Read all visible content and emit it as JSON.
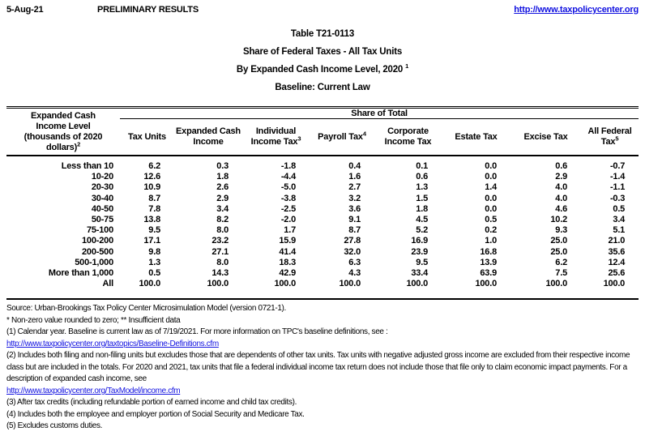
{
  "topbar": {
    "date": "5-Aug-21",
    "banner": "PRELIMINARY RESULTS",
    "site_url": "http://www.taxpolicycenter.org"
  },
  "title_lines": [
    {
      "text": "Table T21-0113"
    },
    {
      "text": "Share of Federal Taxes - All Tax Units"
    },
    {
      "text": "By Expanded Cash Income Level, 2020 ",
      "sup": "1"
    },
    {
      "text": "Baseline: Current Law"
    }
  ],
  "table": {
    "row_header": {
      "lines": [
        "Expanded Cash",
        "Income Level",
        "(thousands of 2020",
        "dollars)"
      ],
      "sup": "2"
    },
    "span_header": "Share of Total",
    "columns": [
      {
        "lines": [
          "Tax Units"
        ]
      },
      {
        "lines": [
          "Expanded Cash",
          "Income"
        ]
      },
      {
        "lines": [
          "Individual",
          "Income Tax"
        ],
        "sup": "3"
      },
      {
        "lines": [
          "Payroll Tax"
        ],
        "sup": "4"
      },
      {
        "lines": [
          "Corporate",
          "Income Tax"
        ]
      },
      {
        "lines": [
          "Estate Tax"
        ]
      },
      {
        "lines": [
          "Excise Tax"
        ]
      },
      {
        "lines": [
          "All Federal",
          "Tax"
        ],
        "sup": "5"
      }
    ],
    "rows": [
      {
        "label": "Less than 10",
        "values": [
          "6.2",
          "0.3",
          "-1.8",
          "0.4",
          "0.1",
          "0.0",
          "0.6",
          "-0.7"
        ]
      },
      {
        "label": "10-20",
        "values": [
          "12.6",
          "1.8",
          "-4.4",
          "1.6",
          "0.6",
          "0.0",
          "2.9",
          "-1.4"
        ]
      },
      {
        "label": "20-30",
        "values": [
          "10.9",
          "2.6",
          "-5.0",
          "2.7",
          "1.3",
          "1.4",
          "4.0",
          "-1.1"
        ]
      },
      {
        "label": "30-40",
        "values": [
          "8.7",
          "2.9",
          "-3.8",
          "3.2",
          "1.5",
          "0.0",
          "4.0",
          "-0.3"
        ]
      },
      {
        "label": "40-50",
        "values": [
          "7.8",
          "3.4",
          "-2.5",
          "3.6",
          "1.8",
          "0.0",
          "4.6",
          "0.5"
        ]
      },
      {
        "label": "50-75",
        "values": [
          "13.8",
          "8.2",
          "-2.0",
          "9.1",
          "4.5",
          "0.5",
          "10.2",
          "3.4"
        ]
      },
      {
        "label": "75-100",
        "values": [
          "9.5",
          "8.0",
          "1.7",
          "8.7",
          "5.2",
          "0.2",
          "9.3",
          "5.1"
        ]
      },
      {
        "label": "100-200",
        "values": [
          "17.1",
          "23.2",
          "15.9",
          "27.8",
          "16.9",
          "1.0",
          "25.0",
          "21.0"
        ]
      },
      {
        "label": "200-500",
        "values": [
          "9.8",
          "27.1",
          "41.4",
          "32.0",
          "23.9",
          "16.8",
          "25.0",
          "35.6"
        ]
      },
      {
        "label": "500-1,000",
        "values": [
          "1.3",
          "8.0",
          "18.3",
          "6.3",
          "9.5",
          "13.9",
          "6.2",
          "12.4"
        ]
      },
      {
        "label": "More than 1,000",
        "values": [
          "0.5",
          "14.3",
          "42.9",
          "4.3",
          "33.4",
          "63.9",
          "7.5",
          "25.6"
        ]
      },
      {
        "label": "All",
        "values": [
          "100.0",
          "100.0",
          "100.0",
          "100.0",
          "100.0",
          "100.0",
          "100.0",
          "100.0"
        ]
      }
    ]
  },
  "notes": {
    "source": "Source: Urban-Brookings Tax Policy Center Microsimulation Model (version 0721-1).",
    "symbols": "* Non-zero value rounded to zero; ** Insufficient data",
    "items": [
      {
        "link": false,
        "text": "(1) Calendar year. Baseline is current law as of 7/19/2021. For more information on TPC's baseline definitions, see :"
      },
      {
        "link": true,
        "text": "http://www.taxpolicycenter.org/taxtopics/Baseline-Definitions.cfm"
      },
      {
        "link": false,
        "text": "(2) Includes both filing and non-filing units but excludes those that are dependents of other tax units. Tax units with negative adjusted gross income are excluded from their respective income class but are included in the totals. For 2020 and 2021, tax units that file a federal individual income tax return does not include those that file only to claim economic impact payments. For a description of expanded cash income, see"
      },
      {
        "link": true,
        "text": "http://www.taxpolicycenter.org/TaxModel/income.cfm"
      },
      {
        "link": false,
        "text": "(3) After tax credits (including refundable portion of earned income and child tax credits)."
      },
      {
        "link": false,
        "text": "(4) Includes both the employee and employer portion of Social Security and Medicare Tax."
      },
      {
        "link": false,
        "text": "(5) Excludes customs duties."
      }
    ]
  }
}
